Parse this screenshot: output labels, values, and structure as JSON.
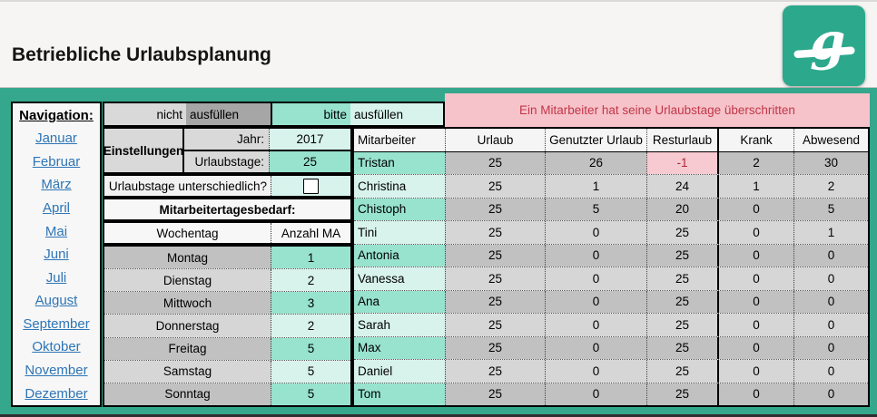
{
  "colors": {
    "frame_teal": "#35A78C",
    "logo_teal": "#2CA88D",
    "cell_teal_medium": "#97E3CE",
    "cell_teal_light": "#D8F3EC",
    "gray_dark": "#A6A6A6",
    "gray_light": "#D9D9D9",
    "row_gray_dark": "#C1C1C1",
    "row_gray_light": "#D6D6D6",
    "warning_pink": "#F6C3CA",
    "warning_red": "#C23648",
    "link_blue": "#2E75B6"
  },
  "header": {
    "title": "Betriebliche Urlaubsplanung"
  },
  "navigation": {
    "label": "Navigation:",
    "months": [
      "Januar",
      "Februar",
      "März",
      "April",
      "Mai",
      "Juni",
      "Juli",
      "August",
      "September",
      "Oktober",
      "November",
      "Dezember"
    ]
  },
  "fill_band": {
    "nicht": "nicht",
    "nicht_suffix": "ausfüllen",
    "bitte": "bitte",
    "bitte_suffix": "ausfüllen"
  },
  "settings": {
    "group_label": "Einstellungen",
    "jahr_label": "Jahr:",
    "jahr_value": "2017",
    "urlaubstage_label": "Urlaubstage:",
    "urlaubstage_value": "25",
    "different_question": "Urlaubstage unterschiedlich?",
    "checkbox_checked": false,
    "bedarf_title": "Mitarbeitertagesbedarf:"
  },
  "weekday_table": {
    "day_header": "Wochentag",
    "count_header": "Anzahl MA",
    "rows": [
      {
        "day": "Montag",
        "count": "1"
      },
      {
        "day": "Dienstag",
        "count": "2"
      },
      {
        "day": "Mittwoch",
        "count": "3"
      },
      {
        "day": "Donnerstag",
        "count": "2"
      },
      {
        "day": "Freitag",
        "count": "5"
      },
      {
        "day": "Samstag",
        "count": "5"
      },
      {
        "day": "Sonntag",
        "count": "5"
      }
    ]
  },
  "warning_banner": {
    "text": "Ein Mitarbeiter hat seine Urlaubstage überschritten"
  },
  "employee_table": {
    "headers": [
      "Mitarbeiter",
      "Urlaub",
      "Genutzter Urlaub",
      "Resturlaub",
      "Krank",
      "Abwesend"
    ],
    "rows": [
      {
        "name": "Tristan",
        "urlaub": "25",
        "genutzter_urlaub": "26",
        "resturlaub": "-1",
        "krank": "2",
        "abwesend": "30",
        "resturlaub_alert": true
      },
      {
        "name": "Christina",
        "urlaub": "25",
        "genutzter_urlaub": "1",
        "resturlaub": "24",
        "krank": "1",
        "abwesend": "2",
        "resturlaub_alert": false
      },
      {
        "name": "Chistoph",
        "urlaub": "25",
        "genutzter_urlaub": "5",
        "resturlaub": "20",
        "krank": "0",
        "abwesend": "5",
        "resturlaub_alert": false
      },
      {
        "name": "Tini",
        "urlaub": "25",
        "genutzter_urlaub": "0",
        "resturlaub": "25",
        "krank": "0",
        "abwesend": "1",
        "resturlaub_alert": false
      },
      {
        "name": "Antonia",
        "urlaub": "25",
        "genutzter_urlaub": "0",
        "resturlaub": "25",
        "krank": "0",
        "abwesend": "0",
        "resturlaub_alert": false
      },
      {
        "name": "Vanessa",
        "urlaub": "25",
        "genutzter_urlaub": "0",
        "resturlaub": "25",
        "krank": "0",
        "abwesend": "0",
        "resturlaub_alert": false
      },
      {
        "name": "Ana",
        "urlaub": "25",
        "genutzter_urlaub": "0",
        "resturlaub": "25",
        "krank": "0",
        "abwesend": "0",
        "resturlaub_alert": false
      },
      {
        "name": "Sarah",
        "urlaub": "25",
        "genutzter_urlaub": "0",
        "resturlaub": "25",
        "krank": "0",
        "abwesend": "0",
        "resturlaub_alert": false
      },
      {
        "name": "Max",
        "urlaub": "25",
        "genutzter_urlaub": "0",
        "resturlaub": "25",
        "krank": "0",
        "abwesend": "0",
        "resturlaub_alert": false
      },
      {
        "name": "Daniel",
        "urlaub": "25",
        "genutzter_urlaub": "0",
        "resturlaub": "25",
        "krank": "0",
        "abwesend": "0",
        "resturlaub_alert": false
      },
      {
        "name": "Tom",
        "urlaub": "25",
        "genutzter_urlaub": "0",
        "resturlaub": "25",
        "krank": "0",
        "abwesend": "0",
        "resturlaub_alert": false
      }
    ]
  }
}
